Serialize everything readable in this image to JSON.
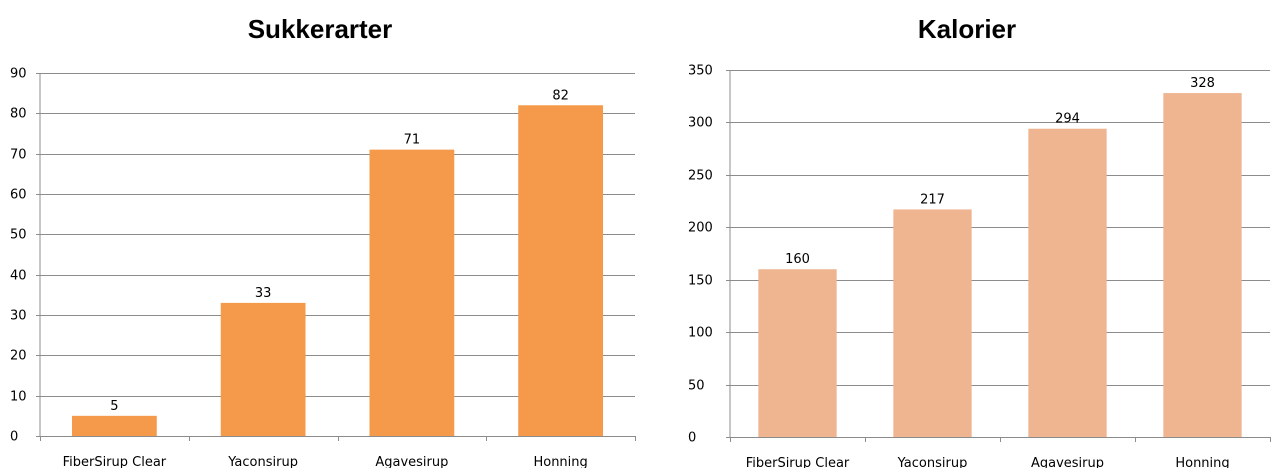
{
  "chart_data": [
    {
      "type": "bar",
      "title": "Sukkerarter",
      "categories": [
        "FiberSirup Clear",
        "Yaconsirup",
        "Agavesirup",
        "Honning"
      ],
      "values": [
        5,
        33,
        71,
        82
      ],
      "xlabel": "",
      "ylabel": "",
      "ylim": [
        0,
        90
      ],
      "yticks": [
        0,
        10,
        20,
        30,
        40,
        50,
        60,
        70,
        80,
        90
      ],
      "grid": true,
      "legend": "none",
      "bar_color": "#f59a4a"
    },
    {
      "type": "bar",
      "title": "Kalorier",
      "categories": [
        "FiberSirup Clear",
        "Yaconsirup",
        "Agavesirup",
        "Honning"
      ],
      "values": [
        160,
        217,
        294,
        328
      ],
      "xlabel": "",
      "ylabel": "",
      "ylim": [
        0,
        350
      ],
      "yticks": [
        0,
        50,
        100,
        150,
        200,
        250,
        300,
        350
      ],
      "grid": true,
      "legend": "none",
      "bar_color": "#efb490"
    }
  ]
}
